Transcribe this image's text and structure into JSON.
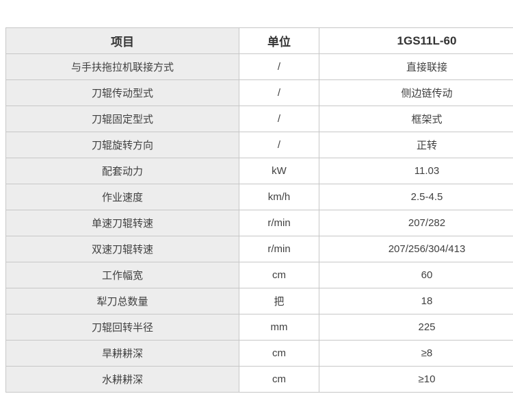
{
  "table": {
    "columns": [
      {
        "label": "项目"
      },
      {
        "label": "单位"
      },
      {
        "label": "1GS11L-60"
      }
    ],
    "rows": [
      {
        "item": "与手扶拖拉机联接方式",
        "unit": "/",
        "value": "直接联接"
      },
      {
        "item": "刀辊传动型式",
        "unit": "/",
        "value": "侧边链传动"
      },
      {
        "item": "刀辊固定型式",
        "unit": "/",
        "value": "框架式"
      },
      {
        "item": "刀辊旋转方向",
        "unit": "/",
        "value": "正转"
      },
      {
        "item": "配套动力",
        "unit": "kW",
        "value": "11.03"
      },
      {
        "item": "作业速度",
        "unit": "km/h",
        "value": "2.5-4.5"
      },
      {
        "item": "单速刀辊转速",
        "unit": "r/min",
        "value": "207/282"
      },
      {
        "item": "双速刀辊转速",
        "unit": "r/min",
        "value": "207/256/304/413"
      },
      {
        "item": "工作幅宽",
        "unit": "cm",
        "value": "60"
      },
      {
        "item": "犁刀总数量",
        "unit": "把",
        "value": "18"
      },
      {
        "item": "刀辊回转半径",
        "unit": "mm",
        "value": "225"
      },
      {
        "item": "旱耕耕深",
        "unit": "cm",
        "value": "≥8"
      },
      {
        "item": "水耕耕深",
        "unit": "cm",
        "value": "≥10"
      }
    ],
    "colors": {
      "item_column_bg": "#ededed",
      "row_bg": "#ffffff",
      "border": "#c7c7c7",
      "header_text": "#333333",
      "body_text": "#404040"
    }
  }
}
